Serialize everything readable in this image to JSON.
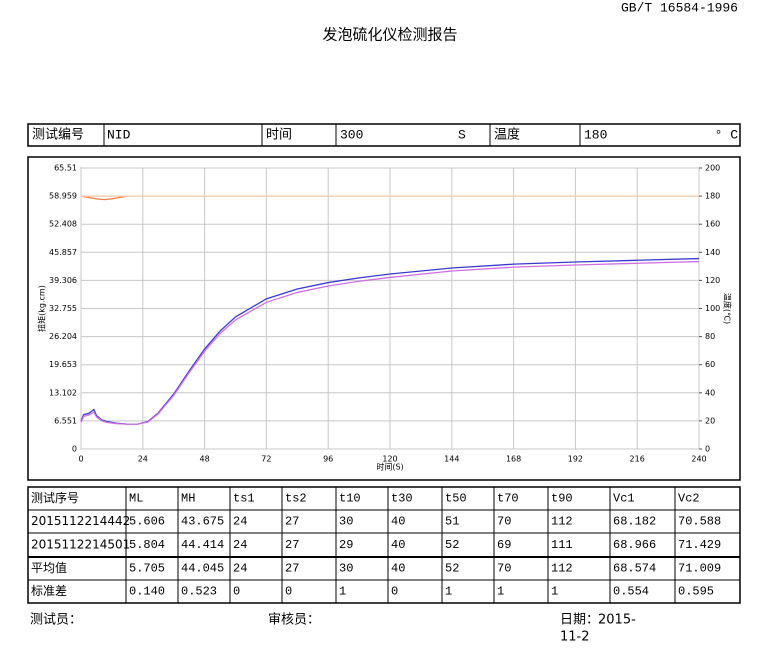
{
  "header": {
    "standard": "GB/T 16584-1996",
    "title": "发泡硫化仪检测报告"
  },
  "info": {
    "id_label": "测试编号",
    "id_value": "NID",
    "time_label": "时间",
    "time_value": "300",
    "time_unit": "S",
    "temp_label": "温度",
    "temp_value": "180",
    "temp_unit": "° C"
  },
  "chart_data": {
    "type": "line",
    "y_label": "扭矩(kg.cm)",
    "y2_label": "温度(℃)",
    "x_label": "时间(S)",
    "xlim": [
      0,
      240
    ],
    "xticks": [
      0,
      24,
      48,
      72,
      96,
      120,
      144,
      168,
      192,
      216,
      240
    ],
    "ylim": [
      0,
      65.51
    ],
    "yticks": [
      0,
      6.551,
      13.102,
      19.653,
      26.204,
      32.755,
      39.306,
      45.857,
      52.408,
      58.959,
      65.51
    ],
    "y2lim": [
      0,
      200
    ],
    "y2ticks": [
      0,
      20,
      40,
      60,
      80,
      100,
      120,
      140,
      160,
      180,
      200
    ],
    "grid": true,
    "series": [
      {
        "color": "#3a3ad0",
        "x": [
          0,
          1,
          3,
          5,
          6,
          8,
          10,
          14,
          18,
          22,
          26,
          30,
          36,
          42,
          48,
          54,
          60,
          72,
          84,
          96,
          108,
          120,
          144,
          168,
          192,
          216,
          240
        ],
        "values": [
          6.5,
          8,
          8.3,
          9.2,
          7.8,
          6.8,
          6.4,
          6,
          5.8,
          5.8,
          6.4,
          8.4,
          12.8,
          18.2,
          23.3,
          27.5,
          30.8,
          35,
          37.3,
          38.8,
          39.9,
          40.8,
          42.2,
          43.1,
          43.6,
          44,
          44.4
        ]
      },
      {
        "color": "#d070e0",
        "x": [
          0,
          1,
          3,
          5,
          6,
          8,
          10,
          14,
          18,
          22,
          26,
          30,
          36,
          42,
          48,
          54,
          60,
          72,
          84,
          96,
          108,
          120,
          144,
          168,
          192,
          216,
          240
        ],
        "values": [
          6.2,
          7.6,
          7.9,
          8.6,
          7.5,
          6.6,
          6.2,
          5.9,
          5.8,
          5.8,
          6.3,
          8.2,
          12.5,
          17.8,
          22.8,
          26.9,
          30.1,
          34.2,
          36.5,
          38,
          39.1,
          40,
          41.5,
          42.4,
          42.9,
          43.3,
          43.7
        ]
      },
      {
        "color": "#f08040",
        "axis": "y2",
        "x": [
          0,
          3,
          6,
          9,
          12,
          15,
          18
        ],
        "values": [
          180,
          179,
          178,
          177.5,
          178,
          179,
          180
        ]
      },
      {
        "color": "#f8c8a8",
        "axis": "y2",
        "x": [
          0,
          240
        ],
        "values": [
          180,
          180
        ]
      }
    ]
  },
  "table": {
    "header": [
      "测试序号",
      "ML",
      "MH",
      "ts1",
      "ts2",
      "t10",
      "t30",
      "t50",
      "t70",
      "t90",
      "Vc1",
      "Vc2"
    ],
    "rows": [
      [
        "2015112214442",
        "5.606",
        "43.675",
        "24",
        "27",
        "30",
        "40",
        "51",
        "70",
        "112",
        "68.182",
        "70.588"
      ],
      [
        "2015112214501",
        "5.804",
        "44.414",
        "24",
        "27",
        "29",
        "40",
        "52",
        "69",
        "111",
        "68.966",
        "71.429"
      ],
      [
        "平均值",
        "5.705",
        "44.045",
        "24",
        "27",
        "30",
        "40",
        "52",
        "70",
        "112",
        "68.574",
        "71.009"
      ],
      [
        "标准差",
        "0.140",
        "0.523",
        "0",
        "0",
        "1",
        "0",
        "1",
        "1",
        "1",
        "0.554",
        "0.595"
      ]
    ]
  },
  "footer": {
    "tester": "测试员：",
    "reviewer": "审核员：",
    "date_label": "日期：",
    "date_line1": "2015-",
    "date_line2": "11-2"
  }
}
